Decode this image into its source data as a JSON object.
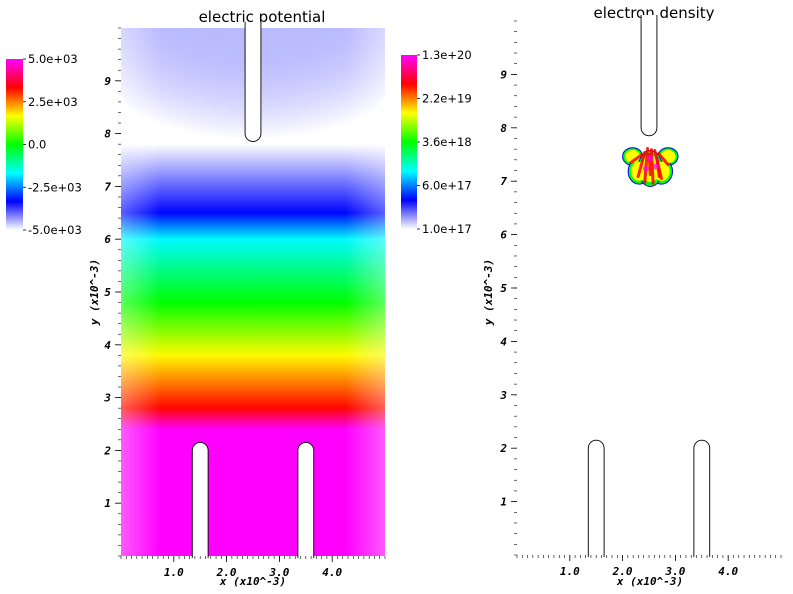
{
  "colors": {
    "magenta": "#ff00ff",
    "red": "#ff0000",
    "yellow": "#ffff00",
    "green": "#00ff00",
    "cyan": "#00ffff",
    "blue": "#0000ff",
    "white": "#ffffff"
  },
  "chart_data": [
    {
      "type": "heatmap",
      "title": "electric potential",
      "xlabel": "x (x10^-3)",
      "ylabel": "y (x10^-3)",
      "xlim": [
        0,
        5
      ],
      "ylim": [
        0,
        10
      ],
      "x_ticks": [
        "1.0",
        "2.0",
        "3.0",
        "4.0"
      ],
      "y_ticks": [
        "1",
        "2",
        "3",
        "4",
        "5",
        "6",
        "7",
        "8",
        "9"
      ],
      "colorbar": {
        "labels": [
          "5.0e+03",
          "2.5e+03",
          "0.0",
          "-2.5e+03",
          "-5.0e+03"
        ],
        "range": [
          -5000,
          5000
        ],
        "colormap": [
          "magenta",
          "red",
          "yellow",
          "green",
          "cyan",
          "blue",
          "white"
        ]
      },
      "field_profile": [
        {
          "y": 0.0,
          "value": 5000
        },
        {
          "y": 2.4,
          "value": 5000
        },
        {
          "y": 2.8,
          "value": 3300
        },
        {
          "y": 3.8,
          "value": 1700
        },
        {
          "y": 4.8,
          "value": 0
        },
        {
          "y": 6.0,
          "value": -1700
        },
        {
          "y": 6.5,
          "value": -3300
        },
        {
          "y": 7.8,
          "value": -5000
        },
        {
          "y": 10.0,
          "value": -5000
        }
      ],
      "electrodes": [
        {
          "side": "top",
          "x_center": 2.5,
          "half_width": 0.15,
          "tip_y": 7.85
        },
        {
          "side": "bottom",
          "x_center": 1.5,
          "half_width": 0.15,
          "tip_y": 2.15
        },
        {
          "side": "bottom",
          "x_center": 3.5,
          "half_width": 0.15,
          "tip_y": 2.15
        }
      ]
    },
    {
      "type": "heatmap",
      "title": "electron density",
      "xlabel": "x (x10^-3)",
      "ylabel": "y (x10^-3)",
      "xlim": [
        0,
        5
      ],
      "ylim": [
        0,
        10
      ],
      "x_ticks": [
        "1.0",
        "2.0",
        "3.0",
        "4.0"
      ],
      "y_ticks": [
        "1",
        "2",
        "3",
        "4",
        "5",
        "6",
        "7",
        "8",
        "9"
      ],
      "colorbar": {
        "labels": [
          "1.3e+20",
          "2.2e+19",
          "3.6e+18",
          "6.0e+17",
          "1.0e+17"
        ],
        "range": [
          1e+17,
          1.3e+20
        ],
        "scale": "log",
        "colormap": [
          "magenta",
          "red",
          "yellow",
          "green",
          "cyan",
          "blue",
          "white"
        ]
      },
      "streamer_region": {
        "x_range": [
          2.0,
          3.05
        ],
        "y_range": [
          6.9,
          7.65
        ]
      },
      "electrodes": [
        {
          "side": "top",
          "x_center": 2.5,
          "half_width": 0.15,
          "tip_y": 7.85
        },
        {
          "side": "bottom",
          "x_center": 1.5,
          "half_width": 0.15,
          "tip_y": 2.15
        },
        {
          "side": "bottom",
          "x_center": 3.5,
          "half_width": 0.15,
          "tip_y": 2.15
        }
      ]
    }
  ]
}
